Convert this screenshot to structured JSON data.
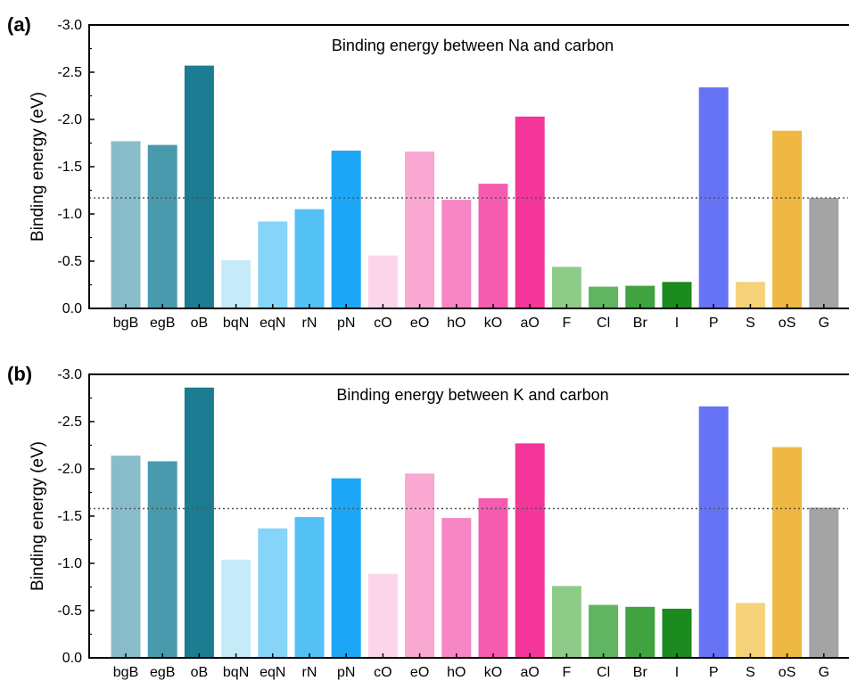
{
  "chart_data": [
    {
      "type": "bar",
      "panel_label": "(a)",
      "title": "Binding energy between Na and carbon",
      "xlabel": "",
      "ylabel": "Binding energy (eV)",
      "ylim": [
        0,
        -3.0
      ],
      "yticks": [
        "0.0",
        "-0.5",
        "-1.0",
        "-1.5",
        "-2.0",
        "-2.5",
        "-3.0"
      ],
      "reference_line": -1.17,
      "categories": [
        "bgB",
        "egB",
        "oB",
        "bqN",
        "eqN",
        "rN",
        "pN",
        "cO",
        "eO",
        "hO",
        "kO",
        "aO",
        "F",
        "Cl",
        "Br",
        "I",
        "P",
        "S",
        "oS",
        "G"
      ],
      "values": [
        -1.77,
        -1.73,
        -2.57,
        -0.51,
        -0.92,
        -1.05,
        -1.67,
        -0.56,
        -1.66,
        -1.15,
        -1.32,
        -2.03,
        -0.44,
        -0.23,
        -0.24,
        -0.28,
        -2.34,
        -0.28,
        -1.88,
        -1.17
      ],
      "colors": [
        "#88bccb",
        "#4a9aae",
        "#1c7c91",
        "#c6ebf8",
        "#86d5f8",
        "#54c1f5",
        "#1ba7f5",
        "#fcd5ea",
        "#f9a8d2",
        "#f786c4",
        "#f55cb0",
        "#f43599",
        "#8ecb88",
        "#60b562",
        "#3fa43f",
        "#1b8a1f",
        "#6673f5",
        "#f5d27a",
        "#efb843",
        "#a4a4a4"
      ]
    },
    {
      "type": "bar",
      "panel_label": "(b)",
      "title": "Binding energy between K and carbon",
      "xlabel": "",
      "ylabel": "Binding energy (eV)",
      "ylim": [
        0,
        -3.0
      ],
      "yticks": [
        "0.0",
        "-0.5",
        "-1.0",
        "-1.5",
        "-2.0",
        "-2.5",
        "-3.0"
      ],
      "reference_line": -1.58,
      "categories": [
        "bgB",
        "egB",
        "oB",
        "bqN",
        "eqN",
        "rN",
        "pN",
        "cO",
        "eO",
        "hO",
        "kO",
        "aO",
        "F",
        "Cl",
        "Br",
        "I",
        "P",
        "S",
        "oS",
        "G"
      ],
      "values": [
        -2.14,
        -2.08,
        -2.86,
        -1.04,
        -1.37,
        -1.49,
        -1.9,
        -0.89,
        -1.95,
        -1.48,
        -1.69,
        -2.27,
        -0.76,
        -0.56,
        -0.54,
        -0.52,
        -2.66,
        -0.58,
        -2.23,
        -1.59
      ],
      "colors": [
        "#88bccb",
        "#4a9aae",
        "#1c7c91",
        "#c6ebf8",
        "#86d5f8",
        "#54c1f5",
        "#1ba7f5",
        "#fcd5ea",
        "#f9a8d2",
        "#f786c4",
        "#f55cb0",
        "#f43599",
        "#8ecb88",
        "#60b562",
        "#3fa43f",
        "#1b8a1f",
        "#6673f5",
        "#f5d27a",
        "#efb843",
        "#a4a4a4"
      ]
    }
  ]
}
